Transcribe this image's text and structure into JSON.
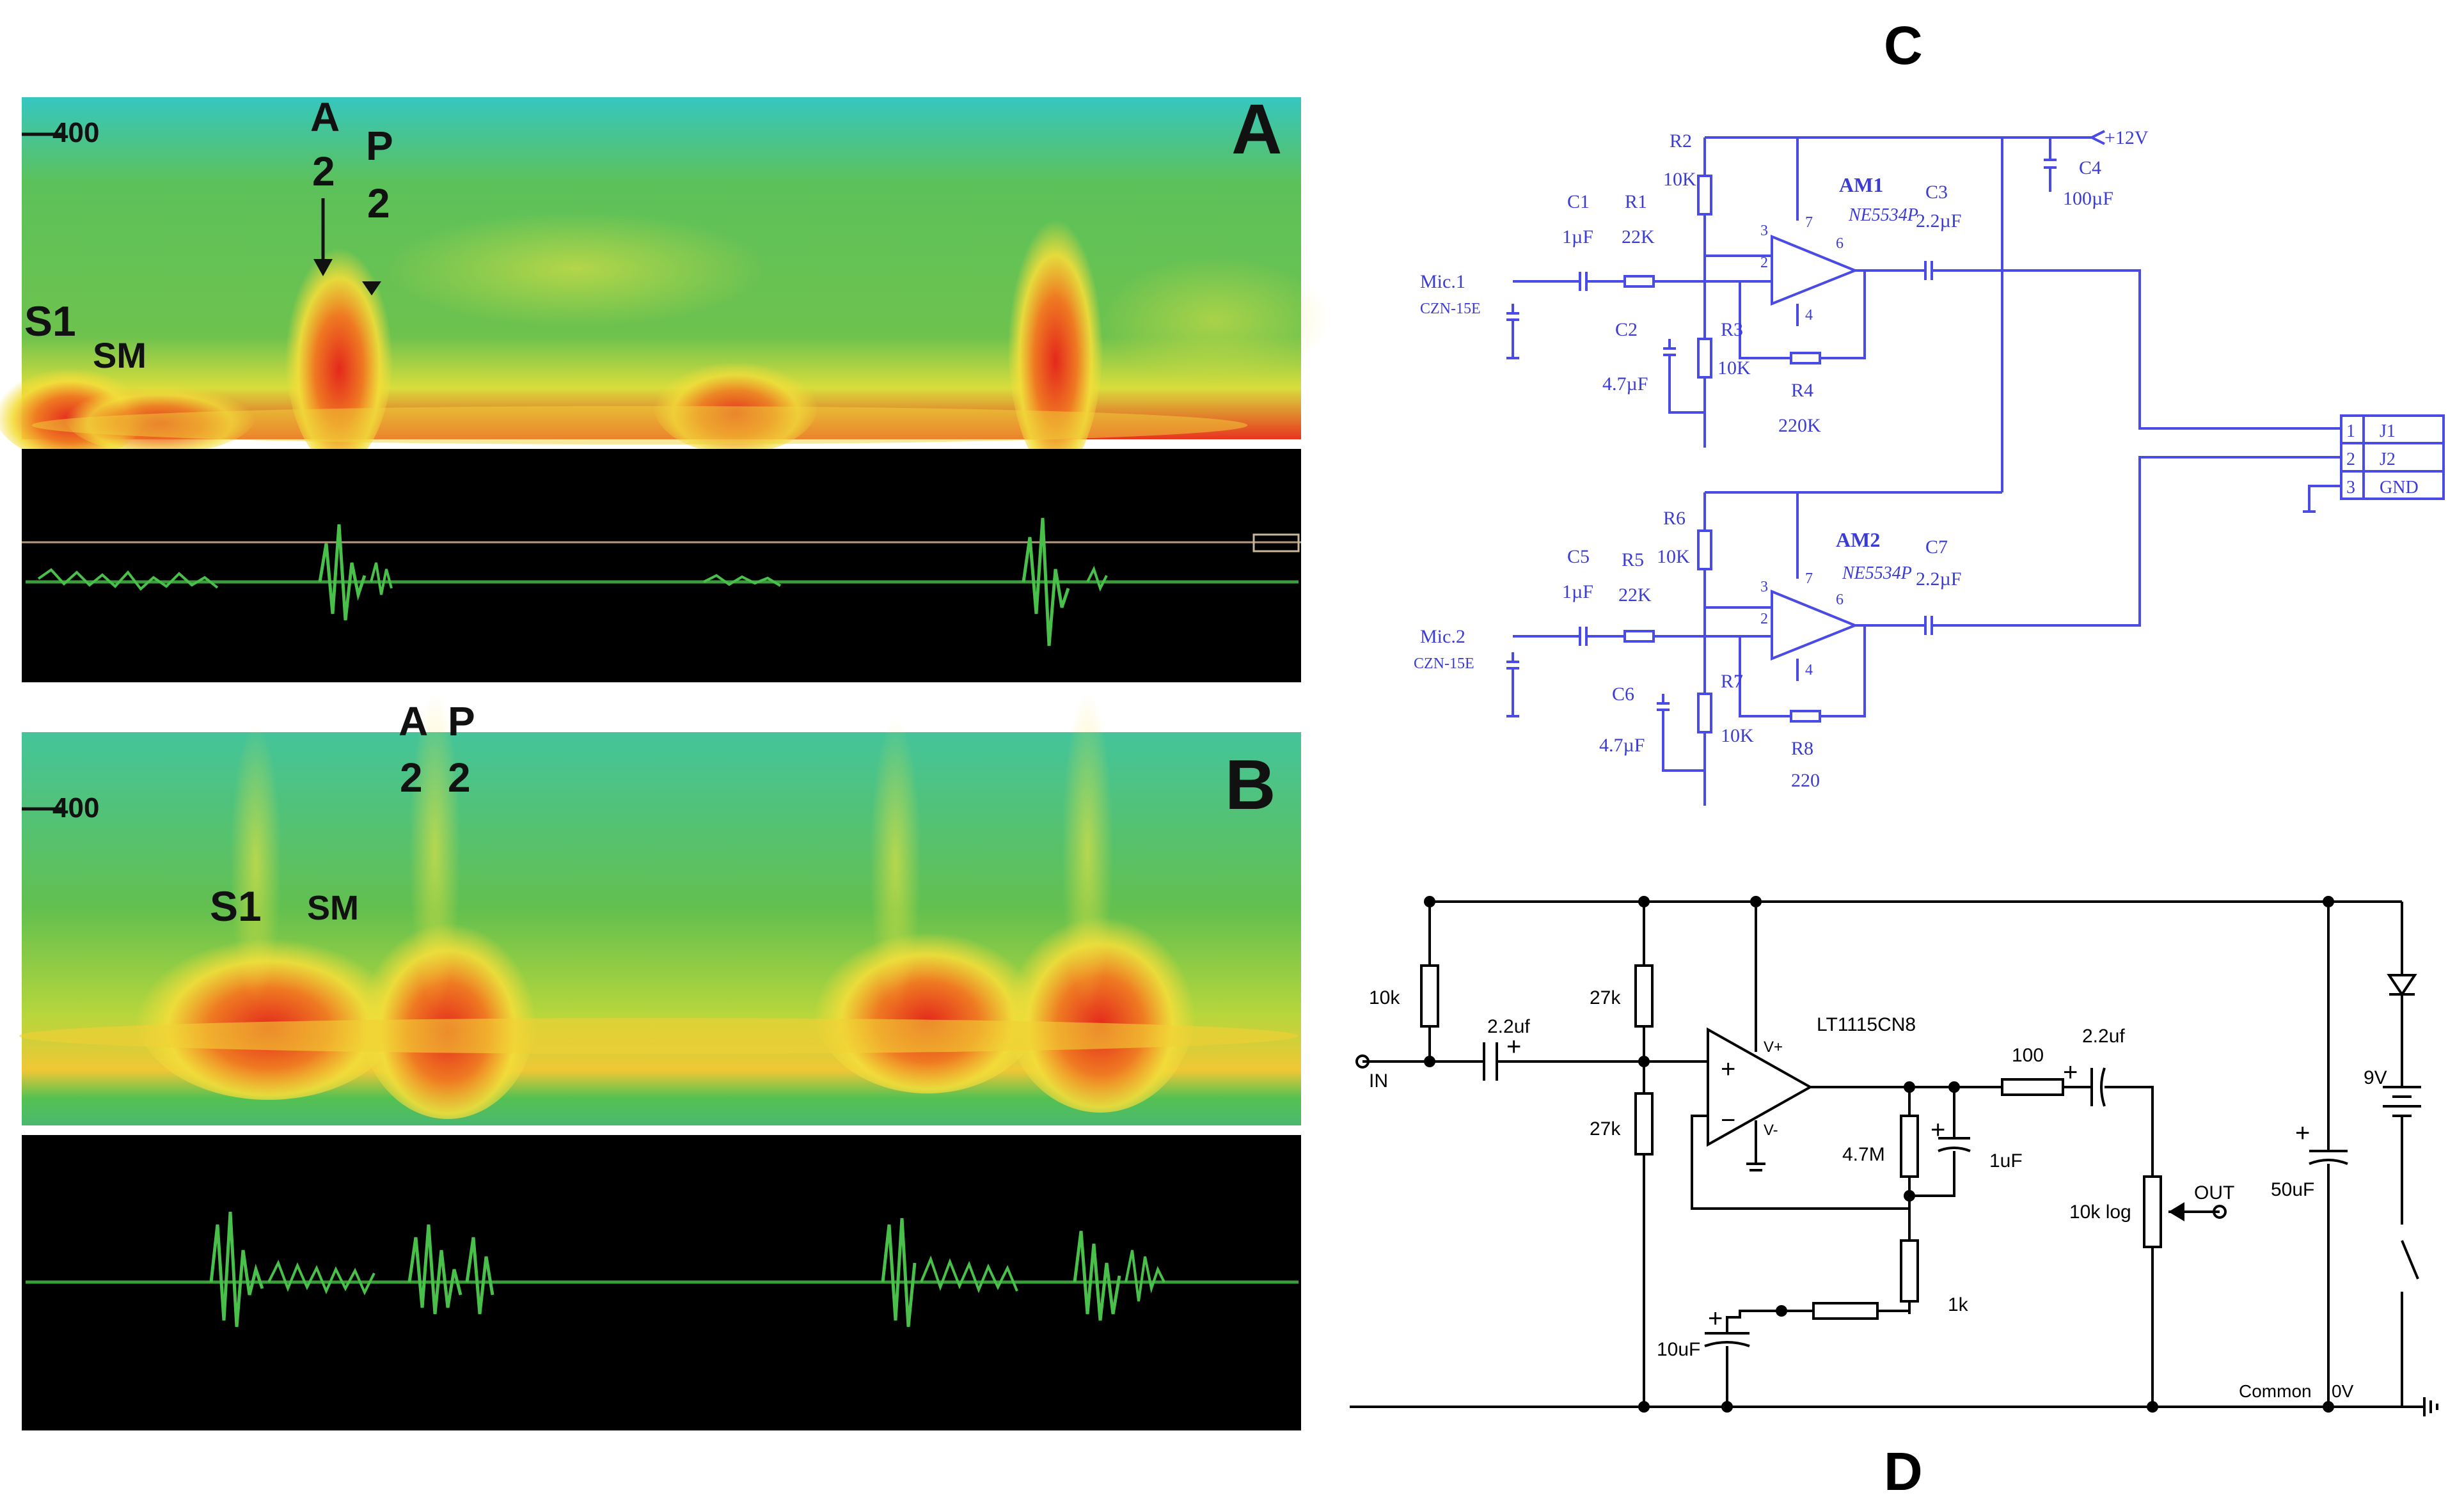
{
  "panels": {
    "A": {
      "label": "A",
      "tick": "400",
      "s1": "S1",
      "sm": "SM",
      "a2_letter": "A",
      "a2_num": "2",
      "p2_letter": "P",
      "p2_num": "2"
    },
    "B": {
      "label": "B",
      "tick": "400",
      "s1": "S1",
      "sm": "SM",
      "a2_letter": "A",
      "a2_num": "2",
      "p2_letter": "P",
      "p2_num": "2"
    },
    "C": {
      "label": "C",
      "supply": "+12V",
      "c4": "C4",
      "c4_val": "100µF",
      "ch1": {
        "mic": "Mic.1",
        "mic_model": "CZN-15E",
        "cin": "C1",
        "cin_val": "1µF",
        "rin": "R1",
        "rin_val": "22K",
        "rtop": "R2",
        "rtop_val": "10K",
        "cb": "C2",
        "cb_val": "4.7µF",
        "rbot": "R3",
        "rbot_val": "10K",
        "rf": "R4",
        "rf_val": "220K",
        "amp": "AM1",
        "amp_model": "NE5534P",
        "cout": "C3",
        "cout_val": "2.2µF",
        "pin3": "3",
        "pin2": "2",
        "pin7": "7",
        "pin6": "6",
        "pin4": "4"
      },
      "ch2": {
        "mic": "Mic.2",
        "mic_model": "CZN-15E",
        "cin": "C5",
        "cin_val": "1µF",
        "rin": "R5",
        "rin_val": "22K",
        "rtop": "R6",
        "rtop_val": "10K",
        "cb": "C6",
        "cb_val": "4.7µF",
        "rbot": "R7",
        "rbot_val": "10K",
        "rf": "R8",
        "rf_val": "220",
        "amp": "AM2",
        "amp_model": "NE5534P",
        "cout": "C7",
        "cout_val": "2.2µF",
        "pin3": "3",
        "pin2": "2",
        "pin7": "7",
        "pin6": "6",
        "pin4": "4"
      },
      "connector": {
        "pins": [
          "1",
          "2",
          "3"
        ],
        "names": [
          "J1",
          "J2",
          "GND"
        ]
      }
    },
    "D": {
      "label": "D",
      "in": "IN",
      "r_top_left": "10k",
      "c_in": "2.2uf",
      "r_div_top": "27k",
      "r_div_bot": "27k",
      "opamp": "LT1115CN8",
      "vplus": "V+",
      "vminus": "V-",
      "plus": "+",
      "minus": "−",
      "r_4m7": "4.7M",
      "c_1u": "1uF",
      "r_1k": "1k",
      "c_10u": "10uF",
      "r_100": "100",
      "c_out": "2.2uf",
      "pot": "10k log",
      "out": "OUT",
      "c_50u": "50uF",
      "batt": "9V",
      "common": "Common",
      "zero_v": "0V"
    }
  },
  "colors": {
    "spectro_green": "#43b54a",
    "spectro_red": "#e8321e",
    "spectro_yellow": "#f2e23a",
    "schematic_blue": "#4a4ae6"
  }
}
